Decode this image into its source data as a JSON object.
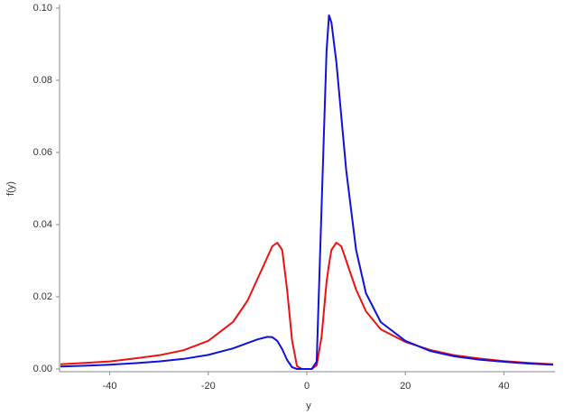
{
  "chart_data": {
    "type": "line",
    "xlabel": "y",
    "ylabel": "f(y)",
    "x": [
      -50,
      -45,
      -40,
      -35,
      -30,
      -25,
      -20,
      -15,
      -12,
      -10,
      -8,
      -7,
      -6,
      -5,
      -4,
      -3,
      -2,
      -1,
      0,
      1,
      2,
      3,
      4,
      4.5,
      5,
      6,
      7,
      8,
      10,
      12,
      15,
      20,
      25,
      30,
      35,
      40,
      45,
      50
    ],
    "series": [
      {
        "color": "#ee1111",
        "values": [
          0.0013,
          0.0017,
          0.0021,
          0.0029,
          0.0038,
          0.0052,
          0.0078,
          0.013,
          0.019,
          0.025,
          0.031,
          0.034,
          0.035,
          0.033,
          0.022,
          0.008,
          0.0008,
          0,
          0,
          0,
          0.001,
          0.009,
          0.024,
          0.029,
          0.033,
          0.035,
          0.034,
          0.03,
          0.022,
          0.016,
          0.011,
          0.0075,
          0.0053,
          0.0038,
          0.0029,
          0.0022,
          0.0017,
          0.0013
        ]
      },
      {
        "color": "#1111dd",
        "values": [
          0.0007,
          0.0009,
          0.0012,
          0.0016,
          0.0021,
          0.0028,
          0.0039,
          0.0057,
          0.0072,
          0.0082,
          0.0089,
          0.0088,
          0.0078,
          0.0055,
          0.0025,
          0.0005,
          0,
          0,
          0,
          0,
          0.002,
          0.045,
          0.088,
          0.098,
          0.096,
          0.085,
          0.07,
          0.055,
          0.033,
          0.021,
          0.013,
          0.0078,
          0.005,
          0.0035,
          0.0026,
          0.002,
          0.0015,
          0.0012
        ]
      }
    ],
    "xlim": [
      -50,
      50
    ],
    "ylim": [
      0,
      0.1
    ],
    "xticks": [
      -40,
      -20,
      0,
      20,
      40
    ],
    "yticks": [
      {
        "value": 0,
        "label": "0.00"
      },
      {
        "value": 0.02,
        "label": "0.02"
      },
      {
        "value": 0.04,
        "label": "0.04"
      },
      {
        "value": 0.06,
        "label": "0.06"
      },
      {
        "value": 0.08,
        "label": "0.08"
      },
      {
        "value": 0.1,
        "label": "0.10"
      }
    ],
    "grid": false
  }
}
